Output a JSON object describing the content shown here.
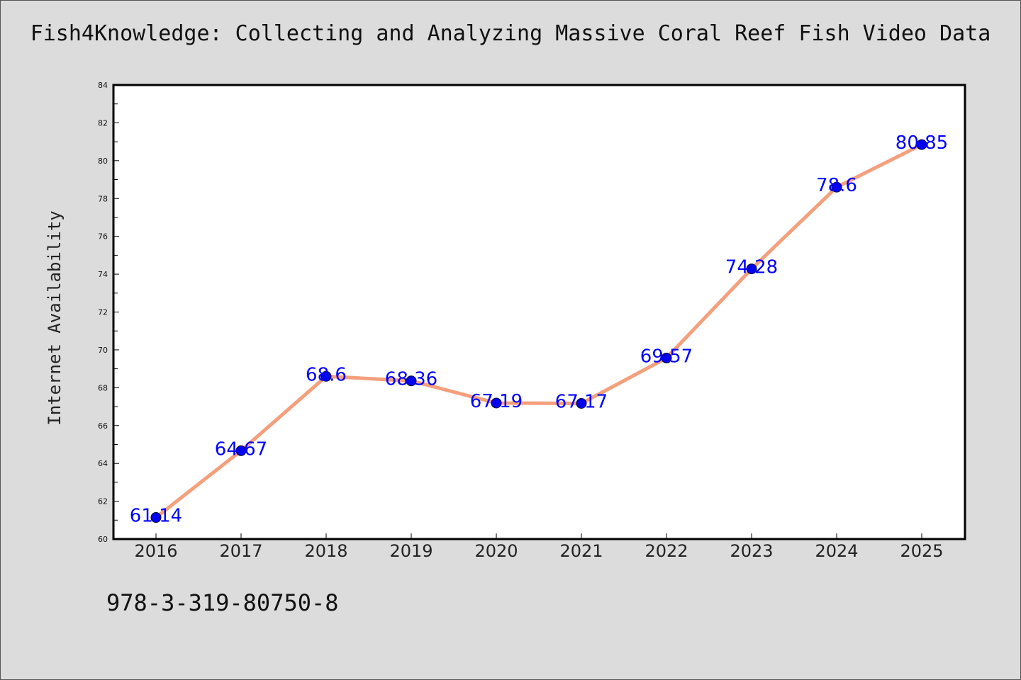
{
  "title": "Fish4Knowledge: Collecting and Analyzing Massive Coral Reef Fish Video Data",
  "footer_text": "978-3-319-80750-8",
  "colors": {
    "background": "#dcdcdc",
    "plot_background": "#ffffff",
    "line": "#f4a07c",
    "marker": "#0000ee",
    "data_label": "#0000ff"
  },
  "chart_data": {
    "type": "line",
    "title": "Fish4Knowledge: Collecting and Analyzing Massive Coral Reef Fish Video Data",
    "xlabel": "",
    "ylabel": "Internet Availability",
    "categories": [
      "2016",
      "2017",
      "2018",
      "2019",
      "2020",
      "2021",
      "2022",
      "2023",
      "2024",
      "2025"
    ],
    "series": [
      {
        "values": [
          61.14,
          64.67,
          68.6,
          68.36,
          67.19,
          67.17,
          69.57,
          74.28,
          78.6,
          80.85
        ]
      }
    ],
    "ylim": [
      60,
      84
    ],
    "yticks": [
      60,
      62,
      64,
      66,
      68,
      70,
      72,
      74,
      76,
      78,
      80,
      82,
      84
    ],
    "data_labels": [
      "61.14",
      "64.67",
      "68.6",
      "68.36",
      "67.19",
      "67.17",
      "69.57",
      "74.28",
      "78.6",
      "80.85"
    ],
    "grid": false,
    "legend": "none"
  }
}
